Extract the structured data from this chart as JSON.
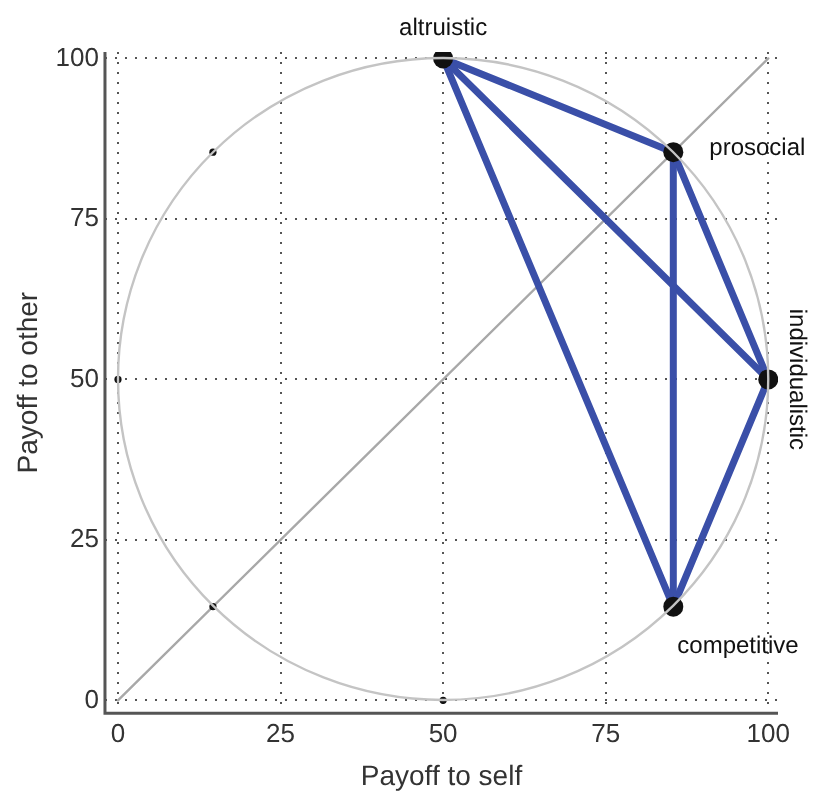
{
  "chart_data": {
    "type": "line",
    "xlabel": "Payoff to self",
    "ylabel": "Payoff to other",
    "xlim": [
      -2,
      101.5
    ],
    "ylim": [
      -2,
      101
    ],
    "xticks": [
      0,
      25,
      50,
      75,
      100
    ],
    "yticks": [
      0,
      25,
      50,
      75,
      100
    ],
    "grid": true,
    "legend": false,
    "series": [
      {
        "color": "#a8a8a8",
        "marker": "none",
        "x": [
          0,
          100
        ],
        "values": [
          0,
          100
        ]
      },
      {
        "type": "scatter",
        "color": "#111111",
        "marker": "circle",
        "x": [
          14.6,
          14.6,
          50,
          0
        ],
        "values": [
          85.4,
          14.6,
          0,
          50
        ]
      },
      {
        "color": "#3a4fa8",
        "marker": "none",
        "x": [
          50,
          85.4,
          100
        ],
        "values": [
          100,
          85.4,
          50
        ]
      },
      {
        "color": "#3a4fa8",
        "marker": "none",
        "x": [
          50,
          85.4,
          100
        ],
        "values": [
          100,
          14.6,
          50
        ]
      },
      {
        "color": "#3a4fa8",
        "marker": "none",
        "x": [
          50,
          100
        ],
        "values": [
          100,
          50
        ]
      },
      {
        "color": "#3a4fa8",
        "marker": "none",
        "x": [
          85.4,
          85.4
        ],
        "values": [
          85.4,
          14.6
        ]
      },
      {
        "type": "scatter",
        "color": "#111111",
        "marker": "circle",
        "x": [
          50,
          85.4,
          100,
          85.4
        ],
        "values": [
          100,
          85.4,
          50,
          14.6
        ]
      }
    ],
    "annotations": [
      {
        "text": "altruistic",
        "x": 50,
        "y": 100
      },
      {
        "text": "prosocial",
        "x": 85.4,
        "y": 85.4
      },
      {
        "text": "individualistic",
        "x": 100,
        "y": 50
      },
      {
        "text": "competitive",
        "x": 85.4,
        "y": 14.6
      }
    ]
  }
}
